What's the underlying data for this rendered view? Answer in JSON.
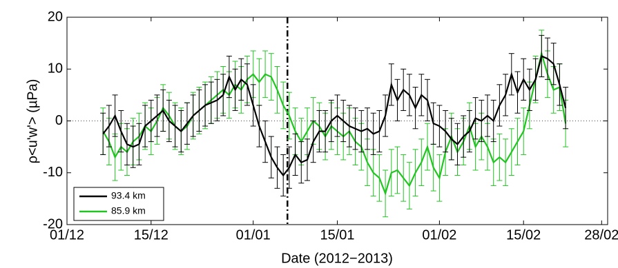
{
  "chart_data": {
    "type": "line",
    "xlabel": "Date (2012−2013)",
    "ylabel": "ρ<u'w'> (µPa)",
    "x": [
      6,
      7,
      8,
      9,
      10,
      11,
      12,
      13,
      14,
      15,
      16,
      17,
      18,
      19,
      20,
      21,
      22,
      23,
      24,
      25,
      26,
      27,
      28,
      29,
      30,
      31,
      32,
      33,
      34,
      35,
      36,
      37,
      38,
      39,
      40,
      41,
      42,
      43,
      44,
      45,
      46,
      47,
      48,
      49,
      50,
      51,
      52,
      53,
      54,
      55,
      56,
      57,
      58,
      59,
      60,
      61,
      62,
      63,
      64,
      65,
      66,
      67,
      68,
      69,
      70,
      71,
      72,
      73,
      74,
      75,
      76,
      77,
      78,
      79,
      80,
      81,
      82,
      83
    ],
    "series": [
      {
        "name": "93.4 km",
        "color": "#000000",
        "error": 4,
        "values": [
          -2.5,
          -1,
          1,
          -2,
          -4.5,
          -5,
          -4.5,
          -1,
          0,
          1,
          2,
          0,
          -1,
          -2,
          -0.5,
          1,
          2,
          3,
          3.5,
          4,
          5,
          8.5,
          6,
          8,
          7,
          3,
          -1,
          -4,
          -7,
          -9,
          -10.5,
          -9,
          -6.5,
          -8,
          -7.5,
          -4,
          -2,
          -2,
          0,
          1,
          0,
          -1,
          -1.5,
          -2,
          -1.5,
          -2.5,
          -2,
          1,
          7,
          4,
          6,
          5,
          2.5,
          5,
          4,
          -0.5,
          -1,
          -2,
          -3.5,
          -4.5,
          -3,
          -2,
          0.5,
          0,
          1,
          0,
          3,
          5,
          9,
          5.5,
          8,
          6,
          8,
          12.5,
          12,
          11,
          7,
          2.5
        ]
      },
      {
        "name": "85.9 km",
        "color": "#22c422",
        "error": 4.5,
        "values": [
          -2,
          -4,
          -7,
          -5,
          -6,
          -4,
          -3,
          -1,
          -2,
          0,
          2.5,
          1,
          -1,
          -2,
          -1,
          1,
          2,
          3,
          4,
          5,
          6,
          5,
          7,
          6,
          8,
          9,
          7.5,
          9,
          8.5,
          6,
          3,
          1,
          -2,
          -4,
          -2,
          0,
          -1,
          -3,
          -1,
          -2,
          -3,
          -2,
          -4,
          -5,
          -8,
          -10,
          -11,
          -14,
          -10,
          -9.5,
          -11,
          -12.5,
          -10,
          -8,
          -5,
          -9,
          -11,
          -6,
          -3,
          -6,
          -4,
          -1,
          -5,
          -3,
          -5,
          -8,
          -7,
          -8,
          -6,
          -4,
          -2,
          3,
          8,
          13,
          9,
          6,
          6.5,
          -0.5
        ]
      }
    ],
    "xlim": [
      0,
      90
    ],
    "xticks": [
      {
        "value": 0,
        "label": "01/12"
      },
      {
        "value": 14,
        "label": "15/12"
      },
      {
        "value": 31,
        "label": "01/01"
      },
      {
        "value": 45,
        "label": "15/01"
      },
      {
        "value": 62,
        "label": "01/02"
      },
      {
        "value": 76,
        "label": "15/02"
      },
      {
        "value": 89,
        "label": "28/02"
      }
    ],
    "ylim": [
      -20,
      20
    ],
    "yticks": [
      -20,
      -10,
      0,
      10,
      20
    ],
    "vline": 36.7,
    "legend": "lower left"
  }
}
